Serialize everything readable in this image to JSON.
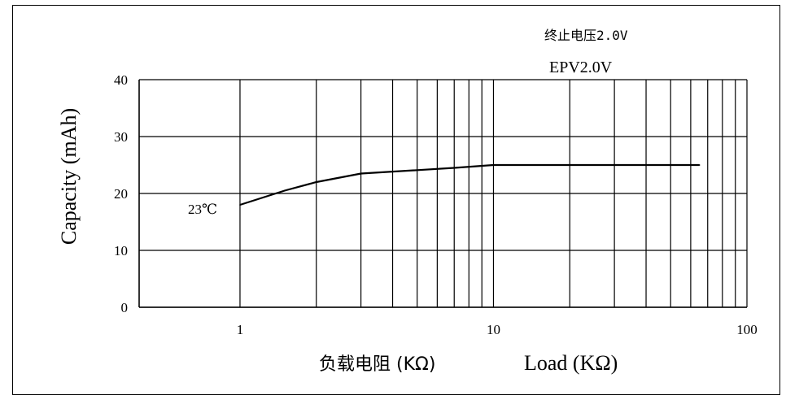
{
  "chart_data": {
    "type": "line",
    "title": "EPV2.0V",
    "title_cn": "终止电压2.0V",
    "ylabel": "Capacity (mAh)",
    "xlabel": "Load (KΩ)",
    "xlabel_cn": "负载电阻 (KΩ)",
    "xscale": "log",
    "xlim": [
      0.4,
      100
    ],
    "ylim": [
      0,
      40
    ],
    "xticks": [
      1,
      10,
      100
    ],
    "xtick_labels": [
      "1",
      "10",
      "100"
    ],
    "yticks": [
      0,
      10,
      20,
      30,
      40
    ],
    "ytick_labels": [
      "0",
      "10",
      "20",
      "30",
      "40"
    ],
    "grid": true,
    "series": [
      {
        "name": "23℃",
        "color": "#000000",
        "x": [
          1,
          1.5,
          2,
          3,
          5,
          7,
          10,
          20,
          30,
          50,
          65
        ],
        "y": [
          18,
          20.5,
          22,
          23.5,
          24.1,
          24.5,
          25,
          25,
          25,
          25,
          25
        ]
      }
    ]
  }
}
